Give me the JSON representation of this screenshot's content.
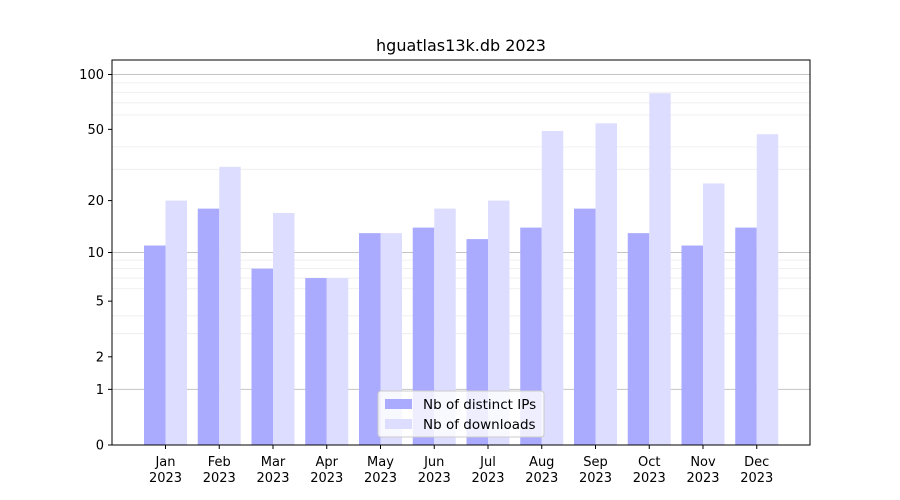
{
  "chart_data": {
    "type": "bar",
    "title": "hguatlas13k.db 2023",
    "xlabel": "",
    "ylabel": "",
    "y_scale": "log(1+y)",
    "ylim": [
      0,
      120
    ],
    "yticks": [
      0,
      1,
      2,
      5,
      10,
      20,
      50,
      100
    ],
    "categories": [
      "Jan",
      "Feb",
      "Mar",
      "Apr",
      "May",
      "Jun",
      "Jul",
      "Aug",
      "Sep",
      "Oct",
      "Nov",
      "Dec"
    ],
    "category_sublabels": [
      "2023",
      "2023",
      "2023",
      "2023",
      "2023",
      "2023",
      "2023",
      "2023",
      "2023",
      "2023",
      "2023",
      "2023"
    ],
    "series": [
      {
        "name": "Nb of distinct IPs",
        "color": "#aaaaff",
        "values": [
          11,
          18,
          8,
          7,
          13,
          14,
          12,
          14,
          18,
          13,
          11,
          14
        ]
      },
      {
        "name": "Nb of downloads",
        "color": "#ddddff",
        "values": [
          20,
          31,
          17,
          7,
          13,
          18,
          20,
          49,
          54,
          79,
          25,
          47
        ]
      }
    ],
    "legend_position": "lower-center",
    "grid": true
  }
}
